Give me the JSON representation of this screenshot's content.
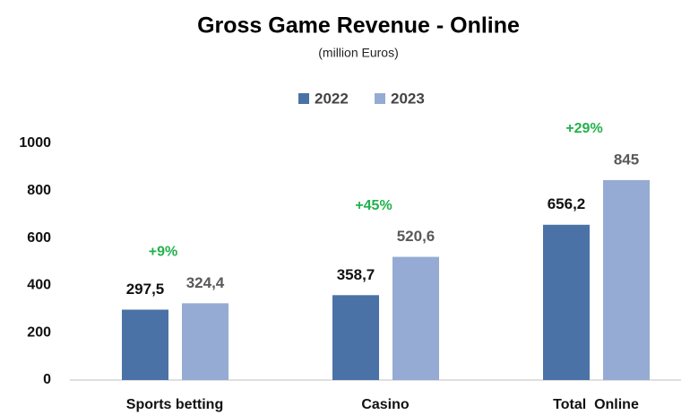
{
  "chart_data": {
    "type": "bar",
    "title": "Gross Game Revenue - Online",
    "subtitle": "(million Euros)",
    "categories": [
      "Sports betting",
      "Casino",
      "Total  Online"
    ],
    "series": [
      {
        "name": "2022",
        "color": "#4a72a6",
        "values": [
          297.5,
          358.7,
          656.2
        ],
        "value_labels": [
          "297,5",
          "358,7",
          "656,2"
        ]
      },
      {
        "name": "2023",
        "color": "#95abd3",
        "values": [
          324.4,
          520.6,
          845
        ],
        "value_labels": [
          "324,4",
          "520,6",
          "845"
        ]
      }
    ],
    "annotations": [
      "+9%",
      "+45%",
      "+29%"
    ],
    "ylim": [
      0,
      1000
    ],
    "yticks": [
      0,
      200,
      400,
      600,
      800,
      1000
    ],
    "grid": false,
    "legend": "top"
  }
}
